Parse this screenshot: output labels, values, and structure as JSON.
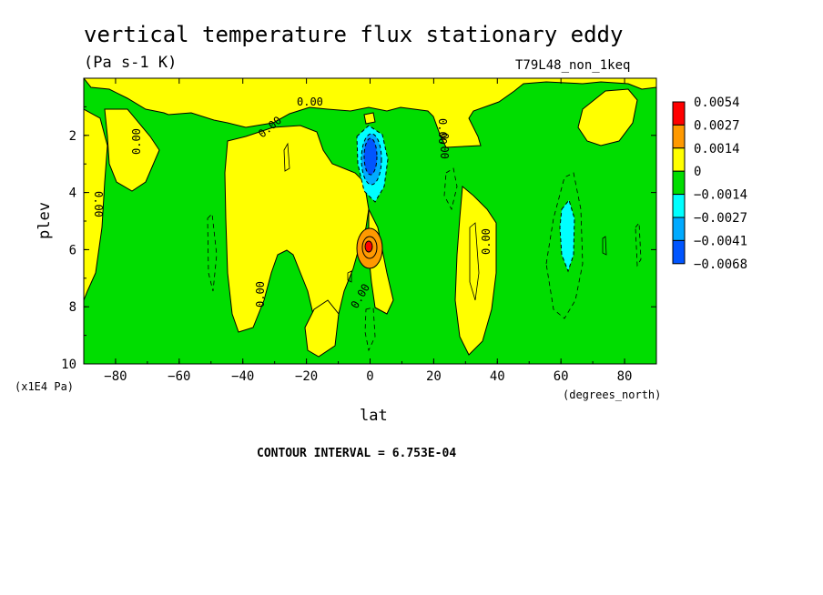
{
  "chart_data": {
    "type": "heatmap",
    "title": "vertical temperature flux stationary eddy",
    "units": "(Pa s-1 K)",
    "run_label": "T79L48_non_1keq",
    "xlabel": "lat",
    "ylabel": "plev",
    "x_units": "(degrees_north)",
    "y_units": "(x1E4 Pa)",
    "xlim": [
      -90,
      90
    ],
    "ylim": [
      10,
      0
    ],
    "x_ticks": [
      -80,
      -60,
      -40,
      -20,
      0,
      20,
      40,
      60,
      80
    ],
    "y_ticks": [
      2,
      4,
      6,
      8,
      10
    ],
    "contour_interval": "CONTOUR INTERVAL = 6.753E-04",
    "contour_labels": [
      "0.00",
      "0.00",
      "0.00",
      "0.00",
      "0.00",
      "0.00",
      "0.00",
      "0.00",
      "0.00"
    ],
    "colorbar": {
      "levels": [
        "0.0054",
        "0.0027",
        "0.0014",
        "0",
        "-0.0014",
        "-0.0027",
        "-0.0041",
        "-0.0068"
      ],
      "colors": [
        "#ff0000",
        "#ff9900",
        "#ffff00",
        "#00dd00",
        "#00ffff",
        "#00aaff",
        "#0055ff"
      ]
    },
    "features": [
      {
        "lat": 0,
        "plev": 6.0,
        "sign": "positive",
        "peak": 0.0054
      },
      {
        "lat": 0,
        "plev": 2.8,
        "sign": "negative",
        "peak": -0.0068
      },
      {
        "lat": 61,
        "plev": 5.5,
        "sign": "negative",
        "peak": -0.0027
      },
      {
        "lat": -30,
        "plev": 5.0,
        "sign": "positive",
        "peak": 0.0014
      },
      {
        "lat": 34,
        "plev": 6.5,
        "sign": "positive",
        "peak": 0.0014
      }
    ]
  }
}
